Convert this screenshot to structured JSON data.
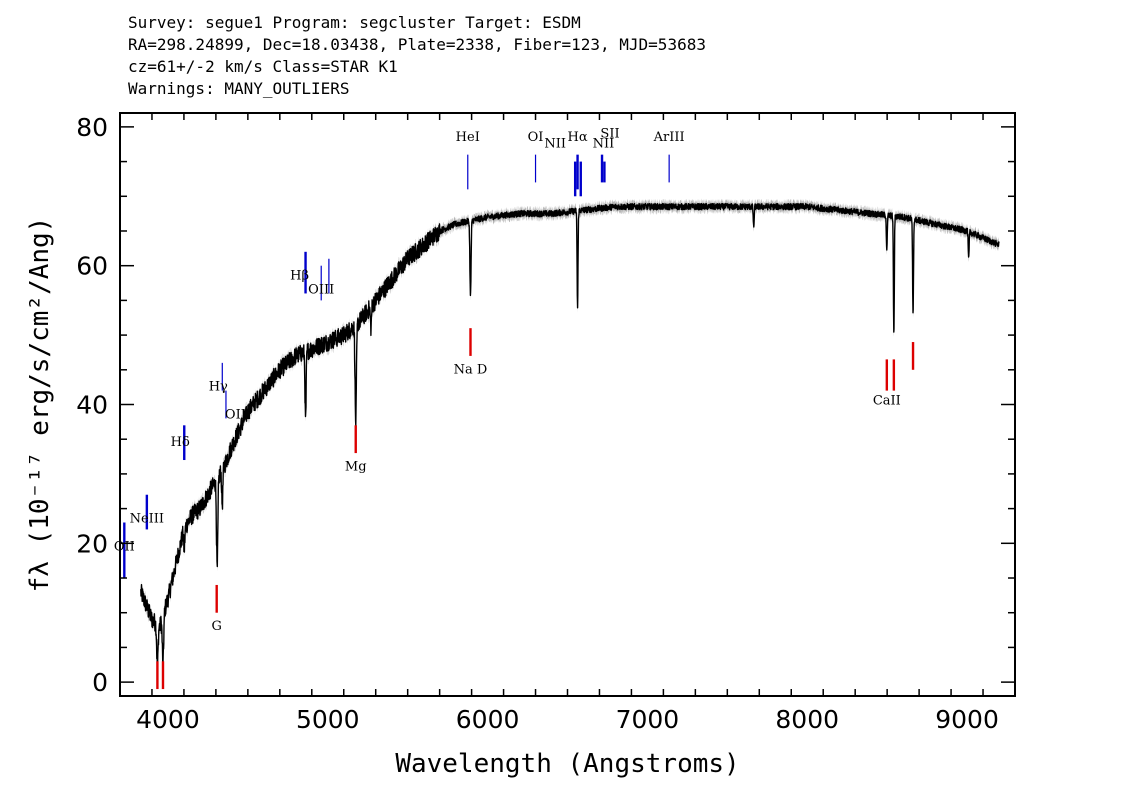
{
  "header": {
    "line1": "Survey: segue1 Program: segcluster Target: ESDM",
    "line2": "RA=298.24899, Dec=18.03438, Plate=2338, Fiber=123, MJD=53683",
    "line3": "cz=61+/-2 km/s Class=STAR K1",
    "line4": "Warnings: MANY_OUTLIERS"
  },
  "chart_data": {
    "type": "line",
    "xlabel": "Wavelength (Angstroms)",
    "ylabel": "fλ (10⁻¹⁷ erg/s/cm²/Ang)",
    "xlim": [
      3700,
      9300
    ],
    "ylim": [
      -2,
      82
    ],
    "x_ticks": [
      4000,
      5000,
      6000,
      7000,
      8000,
      9000
    ],
    "y_ticks": [
      0,
      20,
      40,
      60,
      80
    ],
    "grid": false,
    "colors": {
      "flux": "#000000",
      "error_band": "#b4b4b4",
      "emission": "#0000cc",
      "absorption": "#dd0000"
    },
    "continuum": [
      [
        3830,
        13
      ],
      [
        3900,
        9
      ],
      [
        3950,
        8
      ],
      [
        4000,
        12
      ],
      [
        4050,
        17
      ],
      [
        4100,
        22
      ],
      [
        4150,
        24
      ],
      [
        4200,
        25
      ],
      [
        4250,
        27
      ],
      [
        4300,
        29
      ],
      [
        4350,
        31
      ],
      [
        4400,
        34
      ],
      [
        4500,
        39
      ],
      [
        4600,
        42
      ],
      [
        4700,
        45
      ],
      [
        4800,
        47
      ],
      [
        4900,
        48
      ],
      [
        5000,
        49
      ],
      [
        5100,
        50
      ],
      [
        5200,
        52
      ],
      [
        5300,
        55
      ],
      [
        5400,
        58
      ],
      [
        5500,
        61
      ],
      [
        5600,
        63
      ],
      [
        5700,
        65
      ],
      [
        5800,
        66
      ],
      [
        5900,
        66.5
      ],
      [
        6000,
        67
      ],
      [
        6200,
        67.5
      ],
      [
        6400,
        67.5
      ],
      [
        6600,
        68
      ],
      [
        6800,
        68.5
      ],
      [
        7000,
        68.5
      ],
      [
        7200,
        68.5
      ],
      [
        7400,
        68.5
      ],
      [
        7600,
        68.5
      ],
      [
        7800,
        68.5
      ],
      [
        8000,
        68.5
      ],
      [
        8200,
        68
      ],
      [
        8400,
        67.5
      ],
      [
        8600,
        67
      ],
      [
        8800,
        66
      ],
      [
        9000,
        65
      ],
      [
        9100,
        64
      ],
      [
        9200,
        63
      ]
    ],
    "absorption_features": [
      {
        "x": 3934,
        "depth": 6,
        "width": 6
      },
      {
        "x": 3969,
        "depth": 7,
        "width": 6
      },
      {
        "x": 4102,
        "depth": 3,
        "width": 5
      },
      {
        "x": 4308,
        "depth": 13,
        "width": 6
      },
      {
        "x": 4340,
        "depth": 5,
        "width": 5
      },
      {
        "x": 4861,
        "depth": 10,
        "width": 5
      },
      {
        "x": 5175,
        "depth": 14,
        "width": 6
      },
      {
        "x": 5270,
        "depth": 3,
        "width": 5
      },
      {
        "x": 5893,
        "depth": 11,
        "width": 5
      },
      {
        "x": 6563,
        "depth": 14,
        "width": 4
      },
      {
        "x": 7665,
        "depth": 3,
        "width": 4
      },
      {
        "x": 8498,
        "depth": 5,
        "width": 4
      },
      {
        "x": 8542,
        "depth": 17,
        "width": 4
      },
      {
        "x": 8662,
        "depth": 14,
        "width": 4
      },
      {
        "x": 9010,
        "depth": 4,
        "width": 4
      }
    ],
    "emission_lines": [
      {
        "label": "OII",
        "x": 3727,
        "y_top": 23,
        "y_bottom": 15,
        "label_y": 19,
        "label_dx": 0,
        "bold": true
      },
      {
        "label": "NeIII",
        "x": 3868,
        "y_top": 27,
        "y_bottom": 22,
        "label_y": 23,
        "label_dx": 0,
        "bold": true
      },
      {
        "label": "Hδ",
        "x": 4102,
        "y_top": 37,
        "y_bottom": 32,
        "label_y": 34,
        "label_dx": -4,
        "bold": true
      },
      {
        "label": "Hγ",
        "x": 4340,
        "y_top": 46,
        "y_bottom": 42,
        "label_y": 42,
        "label_dx": -4,
        "bold": false
      },
      {
        "label": "OIII",
        "x": 4363,
        "y_top": 42,
        "y_bottom": 38,
        "label_y": 38,
        "label_dx": 12,
        "bold": false
      },
      {
        "label": "Hβ",
        "x": 4861,
        "y_top": 62,
        "y_bottom": 56,
        "label_y": 58,
        "label_dx": -6,
        "bold": true
      },
      {
        "label": "OIII",
        "x": 4959,
        "y_top": 60,
        "y_bottom": 55,
        "label_y": 56,
        "label_dx": 0,
        "bold": false
      },
      {
        "label": "",
        "x": 5007,
        "y_top": 61,
        "y_bottom": 56,
        "label_y": 56,
        "label_dx": 0,
        "bold": false
      },
      {
        "label": "HeI",
        "x": 5876,
        "y_top": 76,
        "y_bottom": 71,
        "label_y": 78,
        "label_dx": 0,
        "bold": false
      },
      {
        "label": "OI",
        "x": 6300,
        "y_top": 76,
        "y_bottom": 72,
        "label_y": 78,
        "label_dx": 0,
        "bold": false
      },
      {
        "label": "NII",
        "x": 6548,
        "y_top": 75,
        "y_bottom": 70,
        "label_y": 77,
        "label_dx": -20,
        "bold": true
      },
      {
        "label": "Hα",
        "x": 6563,
        "y_top": 76,
        "y_bottom": 71,
        "label_y": 78,
        "label_dx": 0,
        "bold": true
      },
      {
        "label": "",
        "x": 6583,
        "y_top": 75,
        "y_bottom": 70,
        "label_y": 75,
        "label_dx": 0,
        "bold": true
      },
      {
        "label": "SII",
        "x": 6716,
        "y_top": 76,
        "y_bottom": 72,
        "label_y": 78.5,
        "label_dx": 8,
        "bold": true
      },
      {
        "label": "NII",
        "x": 6731,
        "y_top": 75,
        "y_bottom": 72,
        "label_y": 77,
        "label_dx": -1,
        "bold": true
      },
      {
        "label": "ArIII",
        "x": 7136,
        "y_top": 76,
        "y_bottom": 72,
        "label_y": 78,
        "label_dx": 0,
        "bold": false
      }
    ],
    "absorption_lines": [
      {
        "label": "",
        "x": 3934,
        "y_top": 3,
        "y_bottom": -1,
        "label_y": -1,
        "label_dx": 0
      },
      {
        "label": "",
        "x": 3969,
        "y_top": 3,
        "y_bottom": -1,
        "label_y": -1,
        "label_dx": 0
      },
      {
        "label": "G",
        "x": 4305,
        "y_top": 14,
        "y_bottom": 10,
        "label_y": 7.5,
        "label_dx": 0
      },
      {
        "label": "Mg",
        "x": 5175,
        "y_top": 37,
        "y_bottom": 33,
        "label_y": 30.5,
        "label_dx": 0
      },
      {
        "label": "Na D",
        "x": 5893,
        "y_top": 51,
        "y_bottom": 47,
        "label_y": 44.5,
        "label_dx": 0
      },
      {
        "label": "CaII",
        "x": 8498,
        "y_top": 46.5,
        "y_bottom": 42,
        "label_y": 40,
        "label_dx": 0
      },
      {
        "label": "",
        "x": 8542,
        "y_top": 46.5,
        "y_bottom": 42,
        "label_y": 42,
        "label_dx": 0
      },
      {
        "label": "",
        "x": 8662,
        "y_top": 49,
        "y_bottom": 45,
        "label_y": 45,
        "label_dx": 0
      }
    ]
  }
}
